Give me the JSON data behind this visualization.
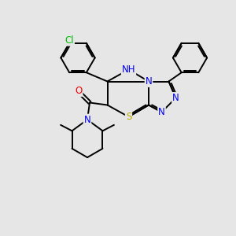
{
  "background_color": "#e6e6e6",
  "fig_size": [
    3.0,
    3.0
  ],
  "dpi": 100,
  "atom_colors": {
    "C": "#000000",
    "N": "#0000ee",
    "S": "#bbaa00",
    "O": "#ee0000",
    "Cl": "#00bb00",
    "H": "#666688"
  },
  "bond_color": "#000000",
  "bond_width": 1.4,
  "font_size_atom": 8.5,
  "font_size_H": 7.5
}
